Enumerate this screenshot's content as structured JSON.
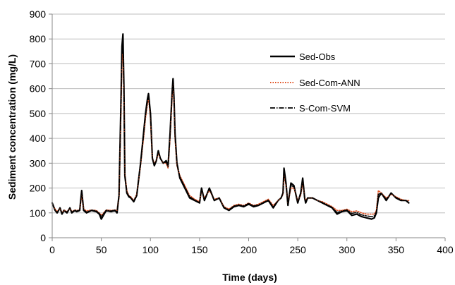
{
  "chart_data": {
    "type": "line",
    "title": "",
    "xlabel": "Time (days)",
    "ylabel": "Sediment concentration (mg/L)",
    "xlim": [
      0,
      400
    ],
    "ylim": [
      0,
      900
    ],
    "x_ticks": [
      0,
      50,
      100,
      150,
      200,
      250,
      300,
      350,
      400
    ],
    "y_ticks": [
      0,
      100,
      200,
      300,
      400,
      500,
      600,
      700,
      800,
      900
    ],
    "grid": "horizontal",
    "legend_position": "upper-right",
    "series": [
      {
        "name": "Sed-Obs",
        "style": "solid",
        "color": "#000000",
        "x": [
          0,
          3,
          5,
          8,
          10,
          12,
          15,
          18,
          20,
          23,
          25,
          28,
          30,
          32,
          35,
          40,
          45,
          48,
          50,
          55,
          60,
          64,
          66,
          68,
          70,
          71,
          72,
          73,
          74,
          76,
          78,
          80,
          83,
          86,
          90,
          93,
          95,
          97,
          98,
          100,
          102,
          104,
          106,
          108,
          110,
          113,
          116,
          118,
          120,
          122,
          123,
          124,
          125,
          127,
          130,
          135,
          140,
          145,
          150,
          152,
          155,
          160,
          165,
          170,
          175,
          180,
          185,
          190,
          195,
          200,
          205,
          210,
          215,
          220,
          225,
          230,
          233,
          235,
          236,
          238,
          240,
          243,
          246,
          250,
          253,
          255,
          257,
          258,
          260,
          265,
          270,
          275,
          280,
          285,
          290,
          295,
          300,
          305,
          310,
          315,
          320,
          325,
          328,
          330,
          332,
          335,
          340,
          345,
          350,
          355,
          360,
          363
        ],
        "y": [
          140,
          110,
          100,
          120,
          95,
          110,
          100,
          120,
          100,
          110,
          105,
          110,
          190,
          110,
          100,
          110,
          105,
          95,
          75,
          110,
          105,
          110,
          100,
          170,
          550,
          770,
          820,
          600,
          250,
          180,
          165,
          160,
          145,
          170,
          300,
          420,
          500,
          560,
          580,
          500,
          320,
          290,
          310,
          350,
          320,
          300,
          310,
          290,
          420,
          580,
          640,
          560,
          420,
          300,
          240,
          200,
          160,
          150,
          140,
          200,
          150,
          200,
          150,
          160,
          120,
          110,
          125,
          130,
          125,
          135,
          125,
          130,
          140,
          150,
          120,
          150,
          160,
          180,
          280,
          220,
          130,
          220,
          210,
          140,
          180,
          240,
          160,
          140,
          160,
          160,
          150,
          140,
          130,
          120,
          95,
          105,
          110,
          90,
          95,
          85,
          80,
          75,
          80,
          100,
          160,
          180,
          150,
          180,
          160,
          150,
          150,
          140
        ]
      },
      {
        "name": "Sed-Com-ANN",
        "style": "dotted",
        "color": "#e05020",
        "x": [
          0,
          3,
          5,
          8,
          10,
          12,
          15,
          18,
          20,
          23,
          25,
          28,
          30,
          32,
          35,
          40,
          45,
          48,
          50,
          55,
          60,
          64,
          66,
          68,
          70,
          71,
          72,
          73,
          74,
          76,
          78,
          80,
          83,
          86,
          90,
          93,
          95,
          97,
          98,
          100,
          102,
          104,
          106,
          108,
          110,
          113,
          116,
          118,
          120,
          122,
          123,
          124,
          125,
          127,
          130,
          135,
          140,
          145,
          150,
          152,
          155,
          160,
          165,
          170,
          175,
          180,
          185,
          190,
          195,
          200,
          205,
          210,
          215,
          220,
          225,
          230,
          233,
          235,
          236,
          238,
          240,
          243,
          246,
          250,
          253,
          255,
          257,
          258,
          260,
          265,
          270,
          275,
          280,
          285,
          290,
          295,
          300,
          305,
          310,
          315,
          320,
          325,
          328,
          330,
          332,
          335,
          340,
          345,
          350,
          355,
          360,
          363
        ],
        "y": [
          135,
          115,
          105,
          118,
          100,
          112,
          105,
          118,
          105,
          112,
          110,
          112,
          170,
          115,
          108,
          112,
          110,
          100,
          90,
          112,
          110,
          112,
          110,
          160,
          500,
          720,
          740,
          560,
          260,
          190,
          170,
          165,
          150,
          175,
          290,
          400,
          480,
          540,
          560,
          480,
          320,
          300,
          310,
          340,
          320,
          300,
          300,
          280,
          400,
          560,
          620,
          540,
          400,
          290,
          250,
          210,
          170,
          155,
          145,
          190,
          160,
          190,
          155,
          160,
          125,
          115,
          130,
          135,
          130,
          140,
          130,
          135,
          145,
          155,
          130,
          150,
          160,
          175,
          250,
          210,
          140,
          200,
          200,
          150,
          170,
          220,
          165,
          150,
          160,
          160,
          150,
          145,
          135,
          125,
          110,
          110,
          115,
          105,
          108,
          100,
          95,
          95,
          95,
          110,
          190,
          180,
          160,
          175,
          165,
          155,
          150,
          150
        ]
      },
      {
        "name": "S-Com-SVM",
        "style": "dash-dot",
        "color": "#000000",
        "x": [
          0,
          3,
          5,
          8,
          10,
          12,
          15,
          18,
          20,
          23,
          25,
          28,
          30,
          32,
          35,
          40,
          45,
          48,
          50,
          55,
          60,
          64,
          66,
          68,
          70,
          71,
          72,
          73,
          74,
          76,
          78,
          80,
          83,
          86,
          90,
          93,
          95,
          97,
          98,
          100,
          102,
          104,
          106,
          108,
          110,
          113,
          116,
          118,
          120,
          122,
          123,
          124,
          125,
          127,
          130,
          135,
          140,
          145,
          150,
          152,
          155,
          160,
          165,
          170,
          175,
          180,
          185,
          190,
          195,
          200,
          205,
          210,
          215,
          220,
          225,
          230,
          233,
          235,
          236,
          238,
          240,
          243,
          246,
          250,
          253,
          255,
          257,
          258,
          260,
          265,
          270,
          275,
          280,
          285,
          290,
          295,
          300,
          305,
          310,
          315,
          320,
          325,
          328,
          330,
          332,
          335,
          340,
          345,
          350,
          355,
          360,
          363
        ],
        "y": [
          138,
          112,
          102,
          119,
          98,
          111,
          103,
          119,
          103,
          111,
          108,
          111,
          180,
          112,
          104,
          111,
          108,
          98,
          85,
          111,
          108,
          111,
          105,
          165,
          530,
          760,
          800,
          580,
          255,
          185,
          168,
          162,
          148,
          172,
          295,
          410,
          490,
          550,
          570,
          490,
          320,
          295,
          310,
          345,
          320,
          300,
          305,
          285,
          410,
          570,
          630,
          550,
          410,
          295,
          245,
          205,
          165,
          152,
          142,
          195,
          155,
          195,
          152,
          160,
          122,
          112,
          128,
          132,
          128,
          138,
          128,
          132,
          142,
          152,
          125,
          150,
          160,
          178,
          265,
          215,
          135,
          210,
          205,
          145,
          175,
          230,
          162,
          145,
          160,
          160,
          150,
          142,
          132,
          122,
          102,
          108,
          112,
          98,
          102,
          92,
          88,
          85,
          88,
          105,
          175,
          180,
          155,
          178,
          162,
          152,
          150,
          145
        ]
      }
    ]
  }
}
